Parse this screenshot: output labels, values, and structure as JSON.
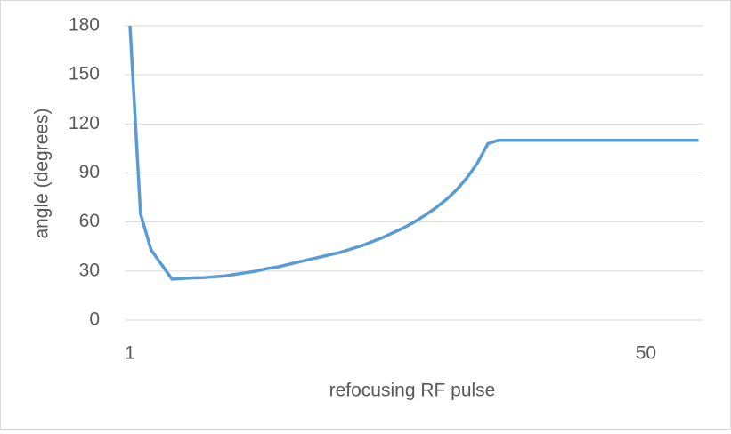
{
  "chart_data": {
    "type": "line",
    "x": [
      1,
      2,
      3,
      4,
      5,
      6,
      7,
      8,
      9,
      10,
      11,
      12,
      13,
      14,
      15,
      16,
      17,
      18,
      19,
      20,
      21,
      22,
      23,
      24,
      25,
      26,
      27,
      28,
      29,
      30,
      31,
      32,
      33,
      34,
      35,
      36,
      37,
      38,
      39,
      40,
      41,
      42,
      43,
      44,
      45,
      46,
      47,
      48,
      49,
      50,
      51,
      52,
      53,
      54,
      55
    ],
    "series": [
      {
        "color": "#5b9bd5",
        "values": [
          180,
          65,
          43,
          34,
          25,
          25.5,
          25.8,
          26,
          26.5,
          27,
          28,
          29,
          30,
          31.5,
          32.5,
          34,
          35.5,
          37,
          38.5,
          40,
          41.5,
          43.5,
          45.5,
          48,
          50.5,
          53.5,
          56.5,
          60,
          64,
          68.5,
          73.5,
          79.5,
          87,
          96,
          108,
          110,
          110,
          110,
          110,
          110,
          110,
          110,
          110,
          110,
          110,
          110,
          110,
          110,
          110,
          110,
          110,
          110,
          110,
          110,
          110
        ]
      }
    ],
    "xlim": [
      1,
      55
    ],
    "xticks": [
      1,
      50
    ],
    "ylim": [
      0,
      180
    ],
    "yticks": [
      0,
      30,
      60,
      90,
      120,
      150,
      180
    ],
    "xlabel": "refocusing RF pulse",
    "ylabel": "angle (degrees)",
    "grid": true
  }
}
